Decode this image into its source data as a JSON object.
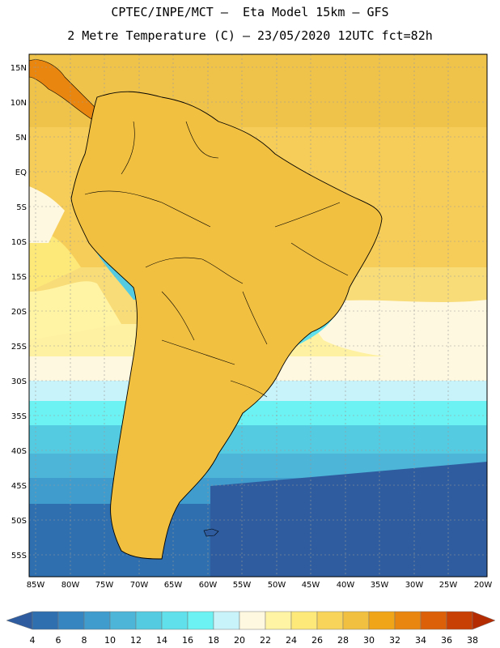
{
  "header": {
    "line1": "CPTEC/INPE/MCT –  Eta Model 15km – GFS",
    "line2": "2 Metre Temperature (C) – 23/05/2020 12UTC fct=82h"
  },
  "map": {
    "lat_labels": [
      "15N",
      "10N",
      "5N",
      "EQ",
      "5S",
      "10S",
      "15S",
      "20S",
      "25S",
      "30S",
      "35S",
      "40S",
      "45S",
      "50S",
      "55S"
    ],
    "lon_labels": [
      "85W",
      "80W",
      "75W",
      "70W",
      "65W",
      "60W",
      "55W",
      "50W",
      "45W",
      "40W",
      "35W",
      "30W",
      "25W",
      "20W"
    ]
  },
  "colorbar": {
    "labels": [
      "4",
      "6",
      "8",
      "10",
      "12",
      "14",
      "16",
      "18",
      "20",
      "22",
      "24",
      "26",
      "28",
      "30",
      "32",
      "34",
      "36",
      "38"
    ],
    "colors": [
      "#2e5c9e",
      "#2f6faf",
      "#3785c0",
      "#3f9ccd",
      "#4cb5d8",
      "#55cbe1",
      "#5fe0ea",
      "#6cf2f2",
      "#c8f3fa",
      "#fff8e0",
      "#fff4a3",
      "#fde87a",
      "#f9d45a",
      "#f2c040",
      "#f0a418",
      "#e8860f",
      "#dc6008",
      "#c84004",
      "#b42c02"
    ]
  }
}
